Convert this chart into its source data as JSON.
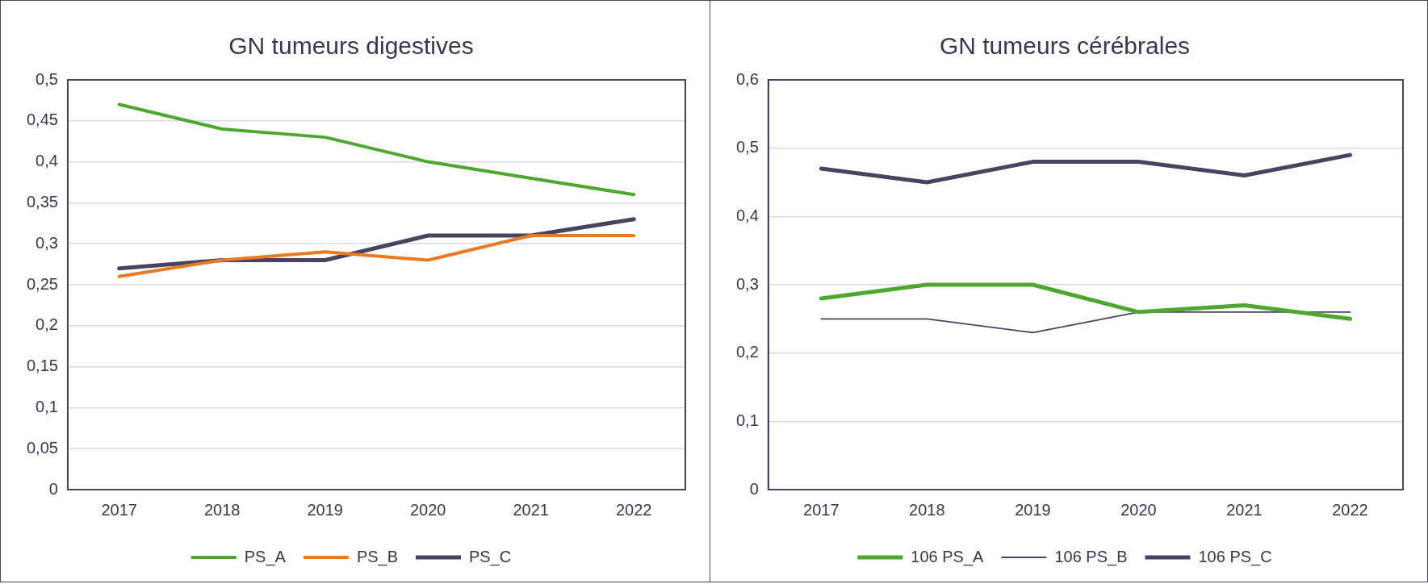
{
  "chart_data": [
    {
      "type": "line",
      "title": "GN tumeurs digestives",
      "categories": [
        "2017",
        "2018",
        "2019",
        "2020",
        "2021",
        "2022"
      ],
      "series": [
        {
          "name": "PS_A",
          "color": "#4ea72e",
          "values": [
            0.47,
            0.44,
            0.43,
            0.4,
            0.38,
            0.36
          ]
        },
        {
          "name": "PS_B",
          "color": "#e97a24",
          "values": [
            0.26,
            0.28,
            0.29,
            0.28,
            0.31,
            0.31
          ]
        },
        {
          "name": "PS_C",
          "color": "#4a4360",
          "values": [
            0.27,
            0.28,
            0.28,
            0.31,
            0.31,
            0.33
          ]
        }
      ],
      "ylim": [
        0,
        0.5
      ],
      "yticks": [
        {
          "value": 0,
          "label": "0"
        },
        {
          "value": 0.05,
          "label": "0,05"
        },
        {
          "value": 0.1,
          "label": "0,1"
        },
        {
          "value": 0.15,
          "label": "0,15"
        },
        {
          "value": 0.2,
          "label": "0,2"
        },
        {
          "value": 0.25,
          "label": "0,25"
        },
        {
          "value": 0.3,
          "label": "0,3"
        },
        {
          "value": 0.35,
          "label": "0,35"
        },
        {
          "value": 0.4,
          "label": "0,4"
        },
        {
          "value": 0.45,
          "label": "0,45"
        },
        {
          "value": 0.5,
          "label": "0,5"
        }
      ],
      "grid": "y",
      "legend": "bottom",
      "marker": "none",
      "line_style": "solid"
    },
    {
      "type": "line",
      "title": "GN tumeurs cérébrales",
      "categories": [
        "2017",
        "2018",
        "2019",
        "2020",
        "2021",
        "2022"
      ],
      "series": [
        {
          "name": "106 PS_A",
          "color": "#4ea72e",
          "values": [
            0.28,
            0.3,
            0.3,
            0.26,
            0.27,
            0.25
          ]
        },
        {
          "name": "106 PS_B",
          "color": "#4a4360",
          "values": [
            0.25,
            0.25,
            0.23,
            0.26,
            0.26,
            0.26
          ]
        },
        {
          "name": "106 PS_C",
          "color": "#4a4360",
          "values": [
            0.47,
            0.45,
            0.48,
            0.48,
            0.46,
            0.49
          ]
        }
      ],
      "ylim": [
        0,
        0.6
      ],
      "yticks": [
        {
          "value": 0,
          "label": "0"
        },
        {
          "value": 0.1,
          "label": "0,1"
        },
        {
          "value": 0.2,
          "label": "0,2"
        },
        {
          "value": 0.3,
          "label": "0,3"
        },
        {
          "value": 0.4,
          "label": "0,4"
        },
        {
          "value": 0.5,
          "label": "0,5"
        },
        {
          "value": 0.6,
          "label": "0,6"
        }
      ],
      "grid": "y",
      "legend": "bottom",
      "marker": "none",
      "line_style": "solid"
    }
  ]
}
